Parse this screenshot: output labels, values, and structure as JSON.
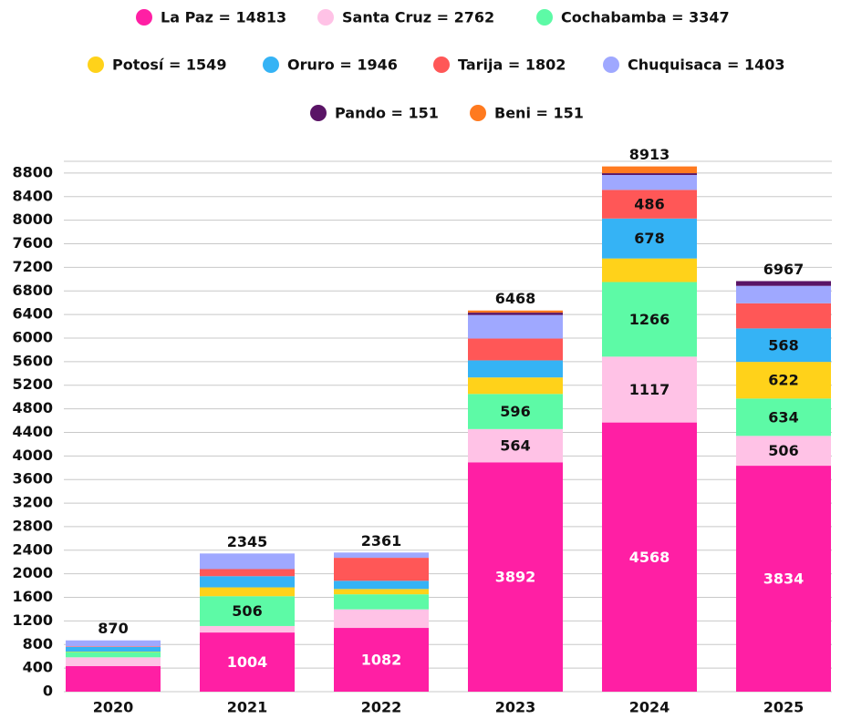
{
  "chart_data": {
    "type": "stacked_bar",
    "categories": [
      "2020",
      "2021",
      "2022",
      "2023",
      "2024",
      "2025"
    ],
    "series": [
      {
        "name": "La Paz = 14813",
        "color": "#ff1fa4",
        "values": [
          433,
          1004,
          1082,
          3892,
          4568,
          3834
        ],
        "value_labels": [
          null,
          "1004",
          "1082",
          "3892",
          "4568",
          "3834"
        ]
      },
      {
        "name": "Santa Cruz = 2762",
        "color": "#ffc2e6",
        "values": [
          150,
          110,
          315,
          564,
          1117,
          506
        ],
        "value_labels": [
          null,
          null,
          null,
          "564",
          "1117",
          "506"
        ]
      },
      {
        "name": "Cochabamba = 3347",
        "color": "#5dfaa6",
        "values": [
          90,
          506,
          255,
          596,
          1266,
          634
        ],
        "value_labels": [
          null,
          "506",
          null,
          "596",
          "1266",
          "634"
        ]
      },
      {
        "name": "Potosí = 1549",
        "color": "#ffd21a",
        "values": [
          7,
          150,
          90,
          280,
          400,
          622
        ],
        "value_labels": [
          null,
          null,
          null,
          null,
          null,
          "622"
        ]
      },
      {
        "name": "Oruro = 1946",
        "color": "#35b3f5",
        "values": [
          80,
          190,
          140,
          290,
          678,
          568
        ],
        "value_labels": [
          null,
          null,
          null,
          null,
          "678",
          "568"
        ]
      },
      {
        "name": "Tarija = 1802",
        "color": "#ff5757",
        "values": [
          10,
          120,
          390,
          370,
          486,
          426
        ],
        "value_labels": [
          null,
          null,
          null,
          null,
          "486",
          null
        ]
      },
      {
        "name": "Chuquisaca = 1403",
        "color": "#9fa8ff",
        "values": [
          100,
          265,
          89,
          400,
          253,
          296
        ]
      },
      {
        "name": "Pando = 151",
        "color": "#5a1466",
        "values": [
          0,
          0,
          0,
          40,
          30,
          81
        ]
      },
      {
        "name": "Beni = 151",
        "color": "#ff7a1f",
        "values": [
          0,
          0,
          0,
          36,
          115,
          0
        ]
      }
    ],
    "totals": [
      870,
      2345,
      2361,
      6468,
      8913,
      6967
    ],
    "ylim": [
      0,
      9000
    ],
    "yticks": [
      0,
      400,
      800,
      1200,
      1600,
      2000,
      2400,
      2800,
      3200,
      3600,
      4000,
      4400,
      4800,
      5200,
      5600,
      6000,
      6400,
      6800,
      7200,
      7600,
      8000,
      8400,
      8800
    ],
    "grid": true
  }
}
